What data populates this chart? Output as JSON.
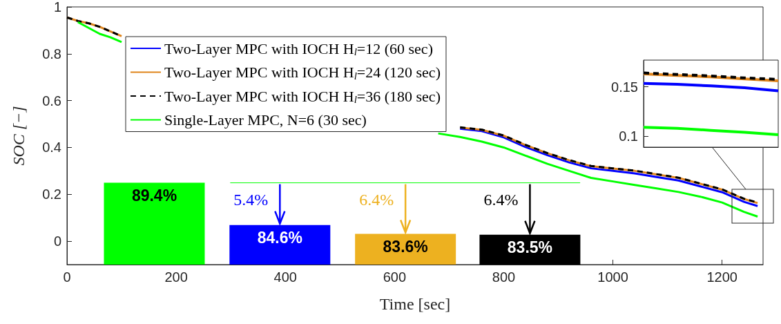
{
  "chart_data": [
    {
      "type": "line",
      "xlabel": "Time [sec]",
      "ylabel": "SOC [−]",
      "xlim": [
        0,
        1275
      ],
      "xticks": [
        0,
        200,
        400,
        600,
        800,
        1000,
        1200
      ],
      "ylim": [
        -0.1,
        1
      ],
      "yticks": [
        0,
        0.2,
        0.4,
        0.6,
        0.8,
        1
      ],
      "y2lim": [
        80.1,
        109.4
      ],
      "grid": false,
      "legend": "top left",
      "series": [
        {
          "name": "Two-Layer MPC with IOCH H$_{l}$=12 (60 sec)",
          "color": "#0000ff",
          "x": [
            720,
            760,
            800,
            840,
            880,
            920,
            960,
            1000,
            1040,
            1080,
            1120,
            1160,
            1200,
            1240,
            1265
          ],
          "values": [
            0.48,
            0.47,
            0.443,
            0.402,
            0.367,
            0.336,
            0.311,
            0.3,
            0.289,
            0.274,
            0.259,
            0.234,
            0.209,
            0.168,
            0.15
          ]
        },
        {
          "name": "Two-Layer MPC with IOCH H$_{l}$=24 (120 sec)",
          "color": "#e0851c",
          "x": [
            0,
            20,
            40,
            60,
            80,
            100,
            400,
            720,
            760,
            800,
            840,
            880,
            920,
            960,
            1000,
            1040,
            1080,
            1120,
            1160,
            1200,
            1240,
            1265
          ],
          "values": [
            0.955,
            0.94,
            0.93,
            0.915,
            0.895,
            0.875,
            null,
            0.485,
            0.475,
            0.45,
            0.41,
            0.375,
            0.345,
            0.32,
            0.31,
            0.3,
            0.285,
            0.27,
            0.245,
            0.22,
            0.18,
            0.163
          ]
        },
        {
          "name": "Two-Layer MPC with IOCH H$_{l}$=36 (180 sec)",
          "color": "#000000",
          "line_style": "dashed",
          "x": [
            0,
            20,
            40,
            60,
            80,
            100,
            400,
            720,
            760,
            800,
            840,
            880,
            920,
            960,
            1000,
            1040,
            1080,
            1120,
            1160,
            1200,
            1240,
            1265
          ],
          "values": [
            0.955,
            0.94,
            0.93,
            0.915,
            0.895,
            0.875,
            null,
            0.486,
            0.476,
            0.451,
            0.411,
            0.376,
            0.346,
            0.321,
            0.311,
            0.301,
            0.286,
            0.271,
            0.246,
            0.221,
            0.181,
            0.165
          ]
        },
        {
          "name": "Single-Layer MPC, N=6 (30 sec)",
          "color": "#00ff00",
          "x": [
            20,
            40,
            60,
            80,
            100,
            400,
            680,
            720,
            760,
            800,
            840,
            880,
            920,
            960,
            1000,
            1040,
            1080,
            1120,
            1160,
            1200,
            1240,
            1265
          ],
          "values": [
            0.935,
            0.91,
            0.885,
            0.87,
            0.85,
            null,
            0.46,
            0.445,
            0.425,
            0.4,
            0.365,
            0.33,
            0.3,
            0.27,
            0.255,
            0.24,
            0.225,
            0.21,
            0.19,
            0.165,
            0.125,
            0.105
          ]
        },
        {
          "type": "line",
          "axis": "y2",
          "color": "#00ff00",
          "x": [
            299,
            940
          ],
          "values": [
            89.4,
            89.4
          ]
        },
        {
          "type": "bar",
          "axis": "y2",
          "x": [
            160,
            390,
            620,
            848
          ],
          "values": [
            89.4,
            84.6,
            83.6,
            83.5
          ],
          "colors": [
            "#00ff00",
            "#0000ff",
            "#edb120",
            "#000000"
          ],
          "value_labels": [
            "89.4%",
            "84.6%",
            "83.6%",
            "83.5%"
          ]
        }
      ],
      "annotations": [
        "5.4%",
        "6.4%",
        "6.4%"
      ]
    },
    {
      "type": "line",
      "categories": [
        null,
        null,
        null,
        null,
        null
      ],
      "ylim": [
        0.089,
        0.177
      ],
      "yticks": [
        0.1,
        0.15
      ],
      "tick_labels": "y",
      "grid": false,
      "series": [
        {
          "color": "#0000ff",
          "values": [
            0.1535,
            0.1525,
            0.151,
            0.149,
            0.146
          ]
        },
        {
          "color": "#e0851c",
          "values": [
            0.163,
            0.1615,
            0.16,
            0.158,
            0.156
          ]
        },
        {
          "color": "#000000",
          "line_style": "dashed",
          "values": [
            0.164,
            0.1625,
            0.161,
            0.159,
            0.1575
          ]
        },
        {
          "color": "#00ff00",
          "values": [
            0.109,
            0.108,
            0.106,
            0.104,
            0.1015
          ]
        }
      ]
    }
  ]
}
